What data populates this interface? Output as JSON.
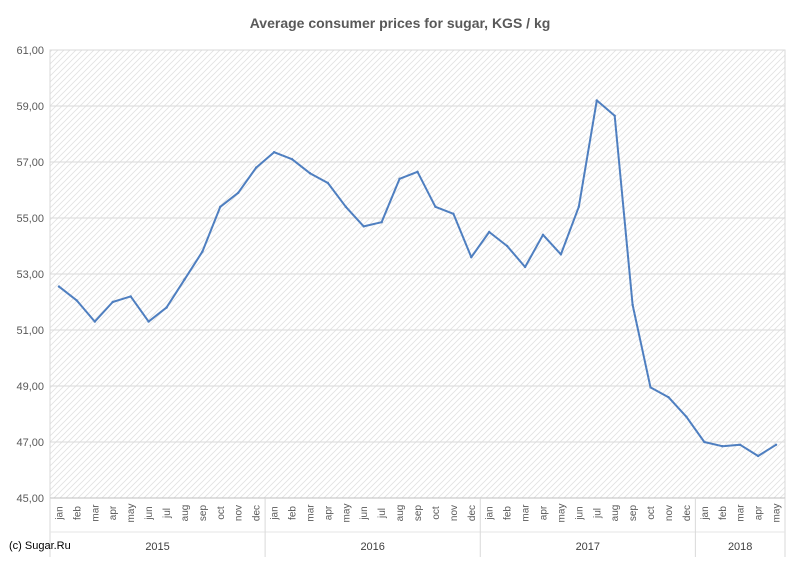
{
  "chart_data": {
    "type": "line",
    "title": "Average consumer prices for sugar, KGS / kg",
    "xlabel": "",
    "ylabel": "",
    "ylim": [
      45,
      61
    ],
    "yticks": [
      "45,00",
      "47,00",
      "49,00",
      "51,00",
      "53,00",
      "55,00",
      "57,00",
      "59,00",
      "61,00"
    ],
    "grid": true,
    "legend": "none",
    "categories": [
      "jan",
      "feb",
      "mar",
      "apr",
      "may",
      "jun",
      "jul",
      "aug",
      "sep",
      "oct",
      "nov",
      "dec",
      "jan",
      "feb",
      "mar",
      "apr",
      "may",
      "jun",
      "jul",
      "aug",
      "sep",
      "oct",
      "nov",
      "dec",
      "jan",
      "feb",
      "mar",
      "apr",
      "may",
      "jun",
      "jul",
      "aug",
      "sep",
      "oct",
      "nov",
      "dec",
      "jan",
      "feb",
      "mar",
      "apr",
      "may"
    ],
    "years": [
      {
        "label": "2015",
        "months": 12
      },
      {
        "label": "2016",
        "months": 12
      },
      {
        "label": "2017",
        "months": 12
      },
      {
        "label": "2018",
        "months": 5
      }
    ],
    "series": [
      {
        "color": "#4f7fc0",
        "values": [
          52.55,
          52.05,
          51.3,
          52.0,
          52.2,
          51.3,
          51.8,
          52.8,
          53.8,
          55.4,
          55.9,
          56.8,
          57.35,
          57.1,
          56.6,
          56.25,
          55.4,
          54.7,
          54.85,
          56.4,
          56.65,
          55.4,
          55.15,
          53.6,
          54.5,
          54.0,
          53.25,
          54.4,
          53.7,
          55.4,
          59.2,
          58.65,
          51.9,
          48.95,
          48.6,
          47.9,
          47.0,
          46.85,
          46.9,
          46.5,
          46.9
        ]
      }
    ]
  },
  "copyright": "(c) Sugar.Ru"
}
